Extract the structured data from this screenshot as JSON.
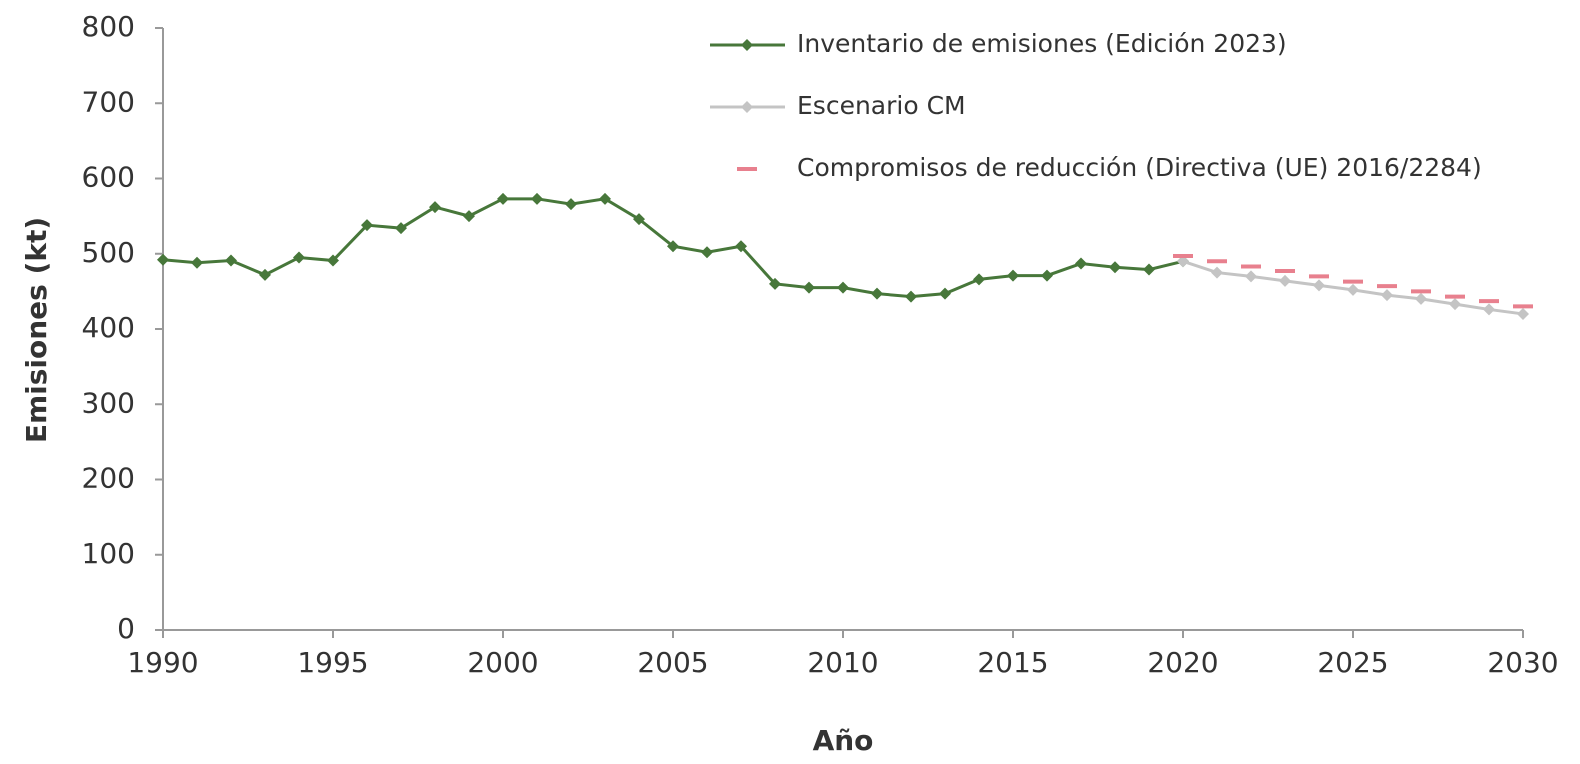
{
  "chart_data": {
    "type": "line",
    "x_label": "Año",
    "y_label": "Emisiones  (kt)",
    "x": [
      1990,
      1991,
      1992,
      1993,
      1994,
      1995,
      1996,
      1997,
      1998,
      1999,
      2000,
      2001,
      2002,
      2003,
      2004,
      2005,
      2006,
      2007,
      2008,
      2009,
      2010,
      2011,
      2012,
      2013,
      2014,
      2015,
      2016,
      2017,
      2018,
      2019,
      2020,
      2021,
      2022,
      2023,
      2024,
      2025,
      2026,
      2027,
      2028,
      2029,
      2030
    ],
    "series": [
      {
        "name": "Inventario de emisiones (Edición 2023)",
        "color": "#47773a",
        "line": true,
        "marker": "diamond",
        "values": [
          492,
          488,
          491,
          472,
          495,
          491,
          538,
          534,
          562,
          550,
          573,
          573,
          566,
          573,
          546,
          510,
          502,
          510,
          460,
          455,
          455,
          447,
          443,
          447,
          466,
          471,
          471,
          487,
          482,
          479,
          490,
          null,
          null,
          null,
          null,
          null,
          null,
          null,
          null,
          null,
          null
        ]
      },
      {
        "name": "Escenario CM",
        "color": "#c4c4c4",
        "line": true,
        "marker": "diamond",
        "values": [
          null,
          null,
          null,
          null,
          null,
          null,
          null,
          null,
          null,
          null,
          null,
          null,
          null,
          null,
          null,
          null,
          null,
          null,
          null,
          null,
          null,
          null,
          null,
          null,
          null,
          null,
          null,
          null,
          null,
          null,
          490,
          475,
          470,
          464,
          458,
          452,
          445,
          440,
          433,
          426,
          420
        ]
      },
      {
        "name": "Compromisos de reducción (Directiva (UE) 2016/2284)",
        "color": "#e8808e",
        "line": false,
        "marker": "dash",
        "values": [
          null,
          null,
          null,
          null,
          null,
          null,
          null,
          null,
          null,
          null,
          null,
          null,
          null,
          null,
          null,
          null,
          null,
          null,
          null,
          null,
          null,
          null,
          null,
          null,
          null,
          null,
          null,
          null,
          null,
          null,
          497,
          490,
          483,
          477,
          470,
          463,
          457,
          450,
          443,
          437,
          430
        ]
      }
    ],
    "xlim": [
      1990,
      2030
    ],
    "xticks": [
      1990,
      1995,
      2000,
      2005,
      2010,
      2015,
      2020,
      2025,
      2030
    ],
    "ylim": [
      0,
      800
    ],
    "yticks": [
      0,
      100,
      200,
      300,
      400,
      500,
      600,
      700,
      800
    ],
    "grid": false,
    "legend": "top-right"
  }
}
